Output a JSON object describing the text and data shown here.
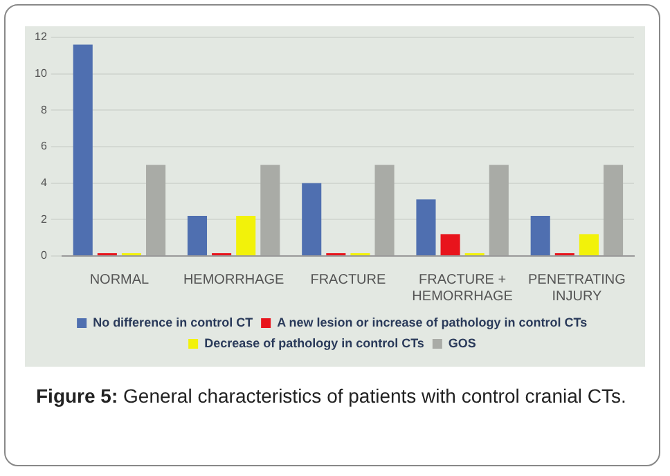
{
  "chart_data": {
    "type": "bar",
    "categories": [
      "NORMAL",
      "HEMORRHAGE",
      "FRACTURE",
      "FRACTURE + HEMORRHAGE",
      "PENETRATING INJURY"
    ],
    "series": [
      {
        "name": "No difference in control CT",
        "color": "#4f6fb0",
        "values": [
          11.6,
          2.2,
          4,
          3.1,
          2.2
        ]
      },
      {
        "name": "A new lesion or increase of pathology in control CTs",
        "color": "#e8141c",
        "values": [
          0,
          0,
          0,
          1.2,
          0
        ]
      },
      {
        "name": "Decrease of pathology in control CTs",
        "color": "#f2f20a",
        "values": [
          0,
          2.2,
          0,
          0,
          1.2
        ]
      },
      {
        "name": "GOS",
        "color": "#a9aba6",
        "values": [
          5,
          5,
          5,
          5,
          5
        ]
      }
    ],
    "ylim": [
      0,
      12
    ],
    "yticks": [
      0,
      2,
      4,
      6,
      8,
      10,
      12
    ],
    "grid": "y",
    "legend": "bottom",
    "annotations": [
      "Figure 5: General characteristics of patients with control cranial CTs."
    ]
  }
}
